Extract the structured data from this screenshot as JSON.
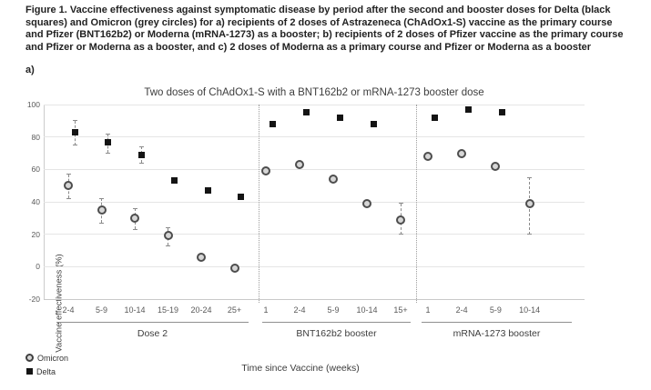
{
  "caption": "Figure 1. Vaccine effectiveness against symptomatic disease by period after the second and booster doses for Delta (black squares) and Omicron (grey circles) for a) recipients of 2 doses of Astrazeneca (ChAdOx1-S) vaccine as the primary course and Pfizer (BNT162b2) or Moderna (mRNA-1273) as a booster; b) recipients of 2 doses of Pfizer vaccine as the primary course and Pfizer or Moderna as a booster, and c) 2 doses of Moderna as a primary course and Pfizer or Moderna as a booster",
  "panel_label": "a)",
  "chart_data": {
    "type": "scatter",
    "title": "Two doses of ChAdOx1-S with a BNT162b2 or mRNA-1273 booster dose",
    "xlabel": "Time since Vaccine (weeks)",
    "ylabel": "Vaccine effectiveness (%)",
    "ylim": [
      -20,
      100
    ],
    "yticks": [
      100,
      80,
      60,
      40,
      20,
      0,
      -20
    ],
    "grid": true,
    "legend_position": "bottom-left",
    "legend": [
      {
        "label": "Omicron",
        "marker": "circle"
      },
      {
        "label": "Delta",
        "marker": "square"
      }
    ],
    "colors": {
      "omicron_fill": "#d6d6d6",
      "omicron_stroke": "#4d4d4d",
      "delta": "#141414",
      "gridline": "#e5e5e5",
      "divider": "#9e9e9e",
      "error_bar": "#8a8a8a",
      "axis_text": "#595959"
    },
    "groups": [
      {
        "label": "Dose 2",
        "categories": [
          "2-4",
          "5-9",
          "10-14",
          "15-19",
          "20-24",
          "25+"
        ],
        "series": [
          {
            "name": "Omicron",
            "points": [
              {
                "v": 50,
                "lo": 42,
                "hi": 57
              },
              {
                "v": 35,
                "lo": 27,
                "hi": 42
              },
              {
                "v": 30,
                "lo": 23,
                "hi": 36
              },
              {
                "v": 19,
                "lo": 13,
                "hi": 24
              },
              {
                "v": 6
              },
              {
                "v": -1
              }
            ]
          },
          {
            "name": "Delta",
            "points": [
              {
                "v": 83,
                "lo": 75,
                "hi": 90
              },
              {
                "v": 77,
                "lo": 70,
                "hi": 82
              },
              {
                "v": 69,
                "lo": 64,
                "hi": 74
              },
              {
                "v": 53
              },
              {
                "v": 47
              },
              {
                "v": 43
              }
            ]
          }
        ]
      },
      {
        "label": "BNT162b2 booster",
        "categories": [
          "1",
          "2-4",
          "5-9",
          "10-14",
          "15+"
        ],
        "series": [
          {
            "name": "Omicron",
            "points": [
              {
                "v": 59
              },
              {
                "v": 63
              },
              {
                "v": 54
              },
              {
                "v": 39
              },
              {
                "v": 29,
                "lo": 20,
                "hi": 39
              }
            ]
          },
          {
            "name": "Delta",
            "points": [
              {
                "v": 88
              },
              {
                "v": 95
              },
              {
                "v": 92
              },
              {
                "v": 88
              },
              null
            ]
          }
        ]
      },
      {
        "label": "mRNA-1273 booster",
        "categories": [
          "1",
          "2-4",
          "5-9",
          "10-14"
        ],
        "series": [
          {
            "name": "Omicron",
            "points": [
              {
                "v": 68
              },
              {
                "v": 70
              },
              {
                "v": 62
              },
              {
                "v": 39,
                "lo": 20,
                "hi": 55
              }
            ]
          },
          {
            "name": "Delta",
            "points": [
              {
                "v": 92
              },
              {
                "v": 97
              },
              {
                "v": 95
              },
              null
            ]
          }
        ]
      }
    ]
  }
}
